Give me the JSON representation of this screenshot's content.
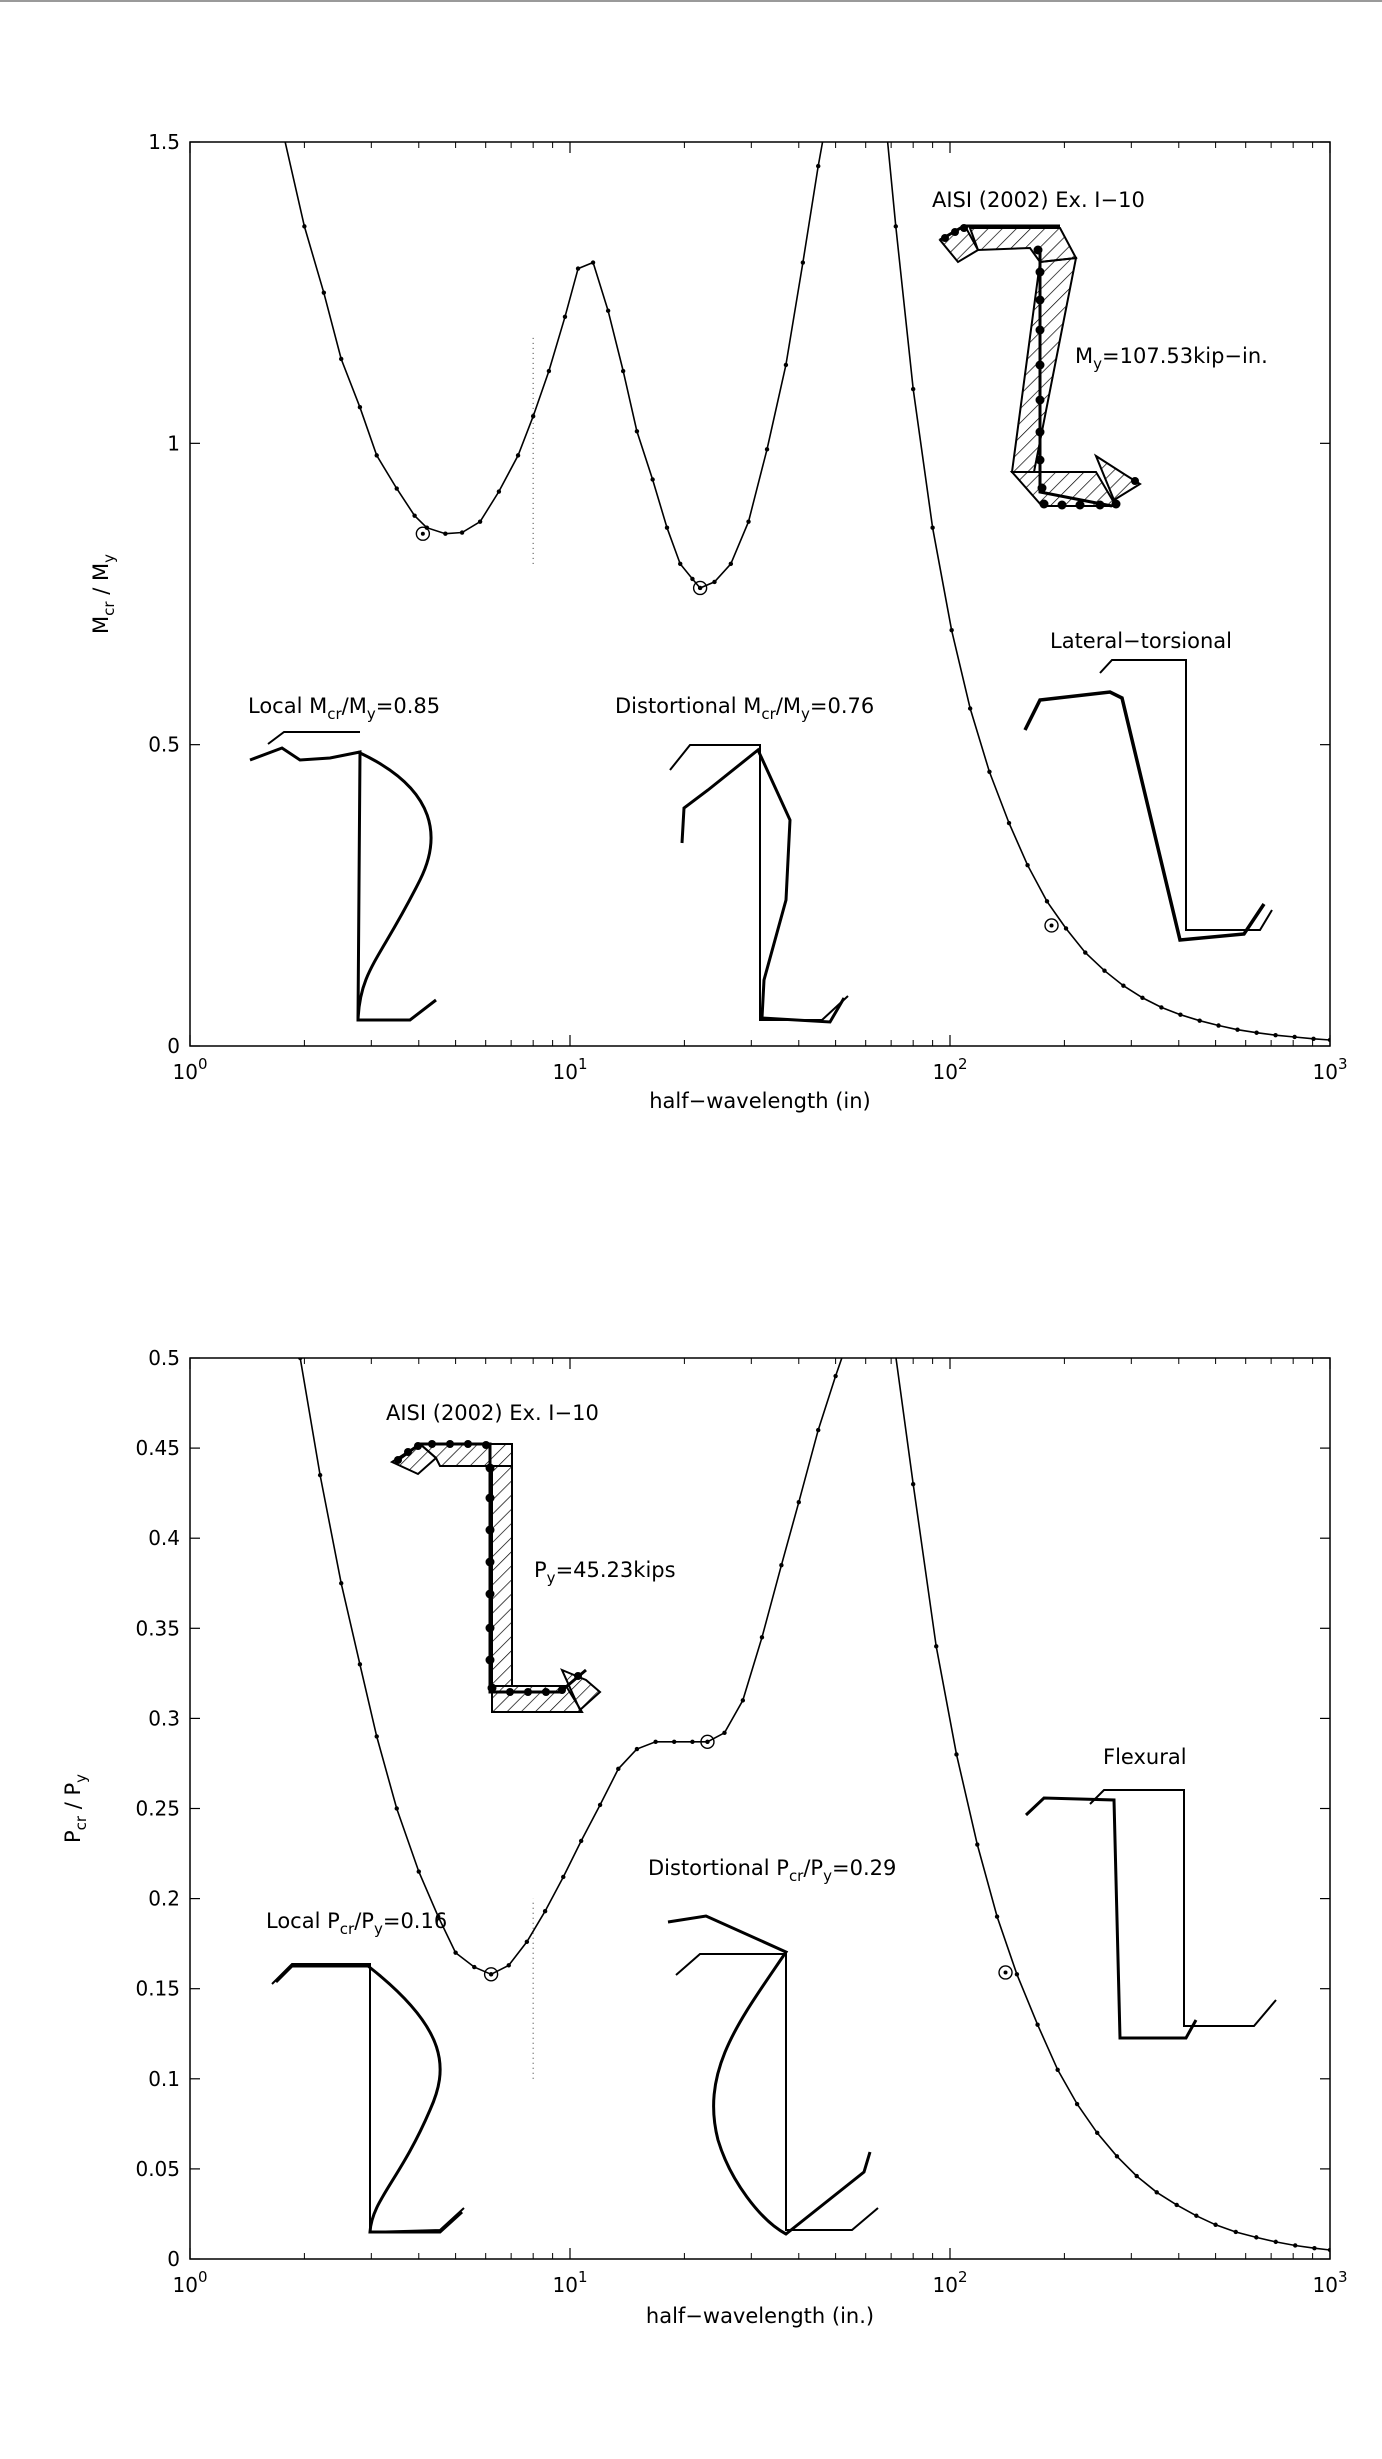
{
  "charts": [
    {
      "type": "line",
      "xscale": "log",
      "xlim": [
        1,
        1000
      ],
      "ylim": [
        0,
        1.5
      ],
      "x_ticks": [
        {
          "value": 1,
          "base": "10",
          "exp": "0"
        },
        {
          "value": 10,
          "base": "10",
          "exp": "1"
        },
        {
          "value": 100,
          "base": "10",
          "exp": "2"
        },
        {
          "value": 1000,
          "base": "10",
          "exp": "3"
        }
      ],
      "y_ticks": [
        {
          "value": 0,
          "label": "0"
        },
        {
          "value": 0.5,
          "label": "0.5"
        },
        {
          "value": 1,
          "label": "1"
        },
        {
          "value": 1.5,
          "label": "1.5"
        }
      ],
      "xlabel": "half−wavelength (in)",
      "ylabel": {
        "a": "M",
        "a_sub": "cr",
        "sep": " / ",
        "b": "M",
        "b_sub": "y"
      },
      "reference_line": {
        "x": 8,
        "y_range": [
          0.8,
          1.18
        ]
      },
      "x": [
        1.5,
        1.75,
        2.0,
        2.25,
        2.5,
        2.8,
        3.1,
        3.5,
        3.9,
        4.2,
        4.7,
        5.2,
        5.8,
        6.5,
        7.3,
        8.0,
        8.8,
        9.7,
        10.5,
        11.5,
        12.6,
        13.8,
        15.0,
        16.5,
        18.0,
        19.5,
        21.0,
        22.0,
        24.0,
        26.5,
        29.5,
        33.0,
        37.0,
        41.0,
        45.0,
        50.0,
        55.0,
        60.0,
        65.0,
        72.0,
        80.0,
        90.0,
        101.0,
        113.0,
        127.0,
        143.0,
        160.0,
        180.0,
        202.0,
        227.0,
        255.0,
        286.0,
        321.0,
        360.0,
        404.0,
        454.0,
        509.0,
        571.0,
        641.0,
        719.0,
        807.0,
        905.0,
        1000.0
      ],
      "y": [
        1.75,
        1.52,
        1.36,
        1.25,
        1.14,
        1.06,
        0.98,
        0.925,
        0.88,
        0.86,
        0.85,
        0.852,
        0.87,
        0.92,
        0.98,
        1.045,
        1.12,
        1.21,
        1.29,
        1.3,
        1.22,
        1.12,
        1.02,
        0.94,
        0.86,
        0.8,
        0.775,
        0.76,
        0.77,
        0.8,
        0.87,
        0.99,
        1.13,
        1.3,
        1.46,
        1.62,
        1.72,
        1.76,
        1.65,
        1.36,
        1.09,
        0.86,
        0.69,
        0.56,
        0.455,
        0.37,
        0.3,
        0.24,
        0.195,
        0.155,
        0.125,
        0.1,
        0.08,
        0.064,
        0.052,
        0.042,
        0.034,
        0.027,
        0.022,
        0.018,
        0.015,
        0.012,
        0.01
      ],
      "markers": [
        {
          "x": 4.1,
          "y": 0.85
        },
        {
          "x": 22.0,
          "y": 0.76
        },
        {
          "x": 185.0,
          "y": 0.2
        }
      ],
      "annotations": [
        {
          "name": "section-title",
          "parts": [
            {
              "t": "AISI (2002) Ex. I−10"
            }
          ]
        },
        {
          "name": "yield-moment-label",
          "parts": [
            {
              "t": "M"
            },
            {
              "t": "y",
              "sub": true
            },
            {
              "t": "=107.53kip−in."
            }
          ]
        },
        {
          "name": "lateral-torsional-label",
          "parts": [
            {
              "t": "Lateral−torsional"
            }
          ]
        },
        {
          "name": "local-mode-label",
          "parts": [
            {
              "t": "Local M"
            },
            {
              "t": "cr",
              "sub": true
            },
            {
              "t": "/M"
            },
            {
              "t": "y",
              "sub": true
            },
            {
              "t": "=0.85"
            }
          ]
        },
        {
          "name": "distortional-mode-label",
          "parts": [
            {
              "t": "Distortional M"
            },
            {
              "t": "cr",
              "sub": true
            },
            {
              "t": "/M"
            },
            {
              "t": "y",
              "sub": true
            },
            {
              "t": "=0.76"
            }
          ]
        }
      ]
    },
    {
      "type": "line",
      "xscale": "log",
      "xlim": [
        1,
        1000
      ],
      "ylim": [
        0,
        0.5
      ],
      "x_ticks": [
        {
          "value": 1,
          "base": "10",
          "exp": "0"
        },
        {
          "value": 10,
          "base": "10",
          "exp": "1"
        },
        {
          "value": 100,
          "base": "10",
          "exp": "2"
        },
        {
          "value": 1000,
          "base": "10",
          "exp": "3"
        }
      ],
      "y_ticks": [
        {
          "value": 0,
          "label": "0"
        },
        {
          "value": 0.05,
          "label": "0.05"
        },
        {
          "value": 0.1,
          "label": "0.1"
        },
        {
          "value": 0.15,
          "label": "0.15"
        },
        {
          "value": 0.2,
          "label": "0.2"
        },
        {
          "value": 0.25,
          "label": "0.25"
        },
        {
          "value": 0.3,
          "label": "0.3"
        },
        {
          "value": 0.35,
          "label": "0.35"
        },
        {
          "value": 0.4,
          "label": "0.4"
        },
        {
          "value": 0.45,
          "label": "0.45"
        },
        {
          "value": 0.5,
          "label": "0.5"
        }
      ],
      "xlabel": "half−wavelength (in.)",
      "ylabel": {
        "a": "P",
        "a_sub": "cr",
        "sep": " / ",
        "b": "P",
        "b_sub": "y"
      },
      "reference_line": {
        "x": 8,
        "y_range": [
          0.1,
          0.2
        ]
      },
      "x": [
        1.95,
        2.2,
        2.5,
        2.8,
        3.1,
        3.5,
        4.0,
        4.5,
        5.0,
        5.6,
        6.2,
        6.9,
        7.7,
        8.6,
        9.6,
        10.7,
        12.0,
        13.4,
        15.0,
        16.8,
        18.8,
        21.0,
        23.0,
        25.5,
        28.5,
        32.0,
        36.0,
        40.0,
        45.0,
        50.0,
        56.0,
        62.0,
        70.0,
        80.0,
        92.0,
        104.0,
        118.0,
        133.0,
        150.0,
        170.0,
        192.0,
        216.0,
        244.0,
        275.0,
        310.0,
        350.0,
        395.0,
        445.0,
        500.0,
        565.0,
        640.0,
        720.0,
        810.0,
        910.0,
        1000.0
      ],
      "y": [
        0.5,
        0.435,
        0.375,
        0.33,
        0.29,
        0.25,
        0.215,
        0.19,
        0.17,
        0.162,
        0.158,
        0.163,
        0.176,
        0.193,
        0.212,
        0.232,
        0.252,
        0.272,
        0.283,
        0.287,
        0.287,
        0.287,
        0.287,
        0.292,
        0.31,
        0.345,
        0.385,
        0.42,
        0.46,
        0.49,
        0.52,
        0.55,
        0.52,
        0.43,
        0.34,
        0.28,
        0.23,
        0.19,
        0.158,
        0.13,
        0.105,
        0.086,
        0.07,
        0.057,
        0.046,
        0.037,
        0.03,
        0.024,
        0.019,
        0.015,
        0.012,
        0.0095,
        0.0075,
        0.006,
        0.005
      ],
      "markers": [
        {
          "x": 6.2,
          "y": 0.158
        },
        {
          "x": 23.0,
          "y": 0.287
        },
        {
          "x": 140.0,
          "y": 0.159
        }
      ],
      "annotations": [
        {
          "name": "section-title",
          "parts": [
            {
              "t": "AISI (2002) Ex. I−10"
            }
          ]
        },
        {
          "name": "yield-load-label",
          "parts": [
            {
              "t": "P"
            },
            {
              "t": "y",
              "sub": true
            },
            {
              "t": "=45.23kips"
            }
          ]
        },
        {
          "name": "flexural-label",
          "parts": [
            {
              "t": "Flexural"
            }
          ]
        },
        {
          "name": "local-mode-label",
          "parts": [
            {
              "t": "Local P"
            },
            {
              "t": "cr",
              "sub": true
            },
            {
              "t": "/P"
            },
            {
              "t": "y",
              "sub": true
            },
            {
              "t": "=0.16"
            }
          ]
        },
        {
          "name": "distortional-mode-label",
          "parts": [
            {
              "t": "Distortional P"
            },
            {
              "t": "cr",
              "sub": true
            },
            {
              "t": "/P"
            },
            {
              "t": "y",
              "sub": true
            },
            {
              "t": "=0.29"
            }
          ]
        }
      ]
    }
  ]
}
